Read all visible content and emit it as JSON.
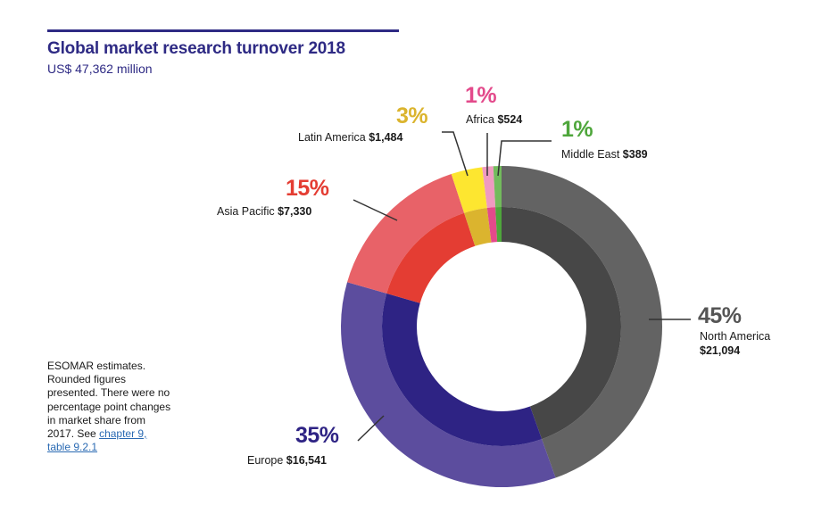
{
  "header": {
    "title": "Global market research turnover 2018",
    "subtitle": "US$ 47,362 million"
  },
  "note": {
    "text": "ESOMAR estimates. Rounded figures presented. There were no percentage point changes in market share from 2017. See ",
    "link_text": "chapter 9, table 9.2.1"
  },
  "chart_data": {
    "type": "pie",
    "title": "Global market research turnover 2018",
    "subtitle": "US$ 47,362 million",
    "total_label": "US$ 47,362 million",
    "unit": "US$ million",
    "start": "12 o'clock, clockwise",
    "slices": [
      {
        "name": "North America",
        "value": 21094,
        "value_label": "$21,094",
        "pct_label": "45%",
        "outer_color": "#636363",
        "inner_color": "#474747",
        "label_color": "#555555"
      },
      {
        "name": "Europe",
        "value": 16541,
        "value_label": "$16,541",
        "pct_label": "35%",
        "outer_color": "#5c4d9e",
        "inner_color": "#2e2384",
        "label_color": "#2e2384"
      },
      {
        "name": "Asia Pacific",
        "value": 7330,
        "value_label": "$7,330",
        "pct_label": "15%",
        "outer_color": "#e86268",
        "inner_color": "#e43d33",
        "label_color": "#e43d33"
      },
      {
        "name": "Latin America",
        "value": 1484,
        "value_label": "$1,484",
        "pct_label": "3%",
        "outer_color": "#fde630",
        "inner_color": "#dbb42e",
        "label_color": "#dbb42e"
      },
      {
        "name": "Africa",
        "value": 524,
        "value_label": "$524",
        "pct_label": "1%",
        "outer_color": "#ef9ac0",
        "inner_color": "#e34a8b",
        "label_color": "#e34a8b"
      },
      {
        "name": "Middle East",
        "value": 389,
        "value_label": "$389",
        "pct_label": "1%",
        "outer_color": "#72bb5c",
        "inner_color": "#4ea63b",
        "label_color": "#4ea63b"
      }
    ]
  }
}
